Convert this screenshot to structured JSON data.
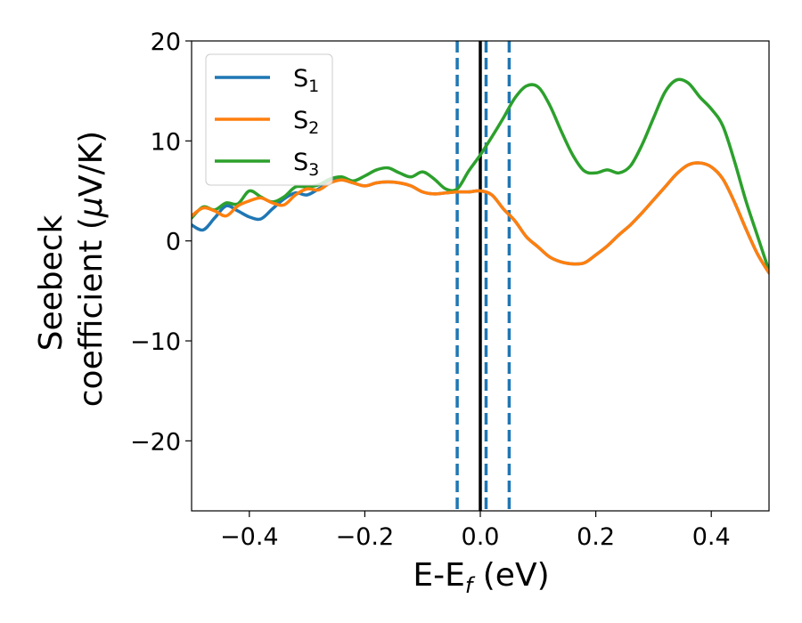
{
  "chart_data": {
    "type": "line",
    "xlabel": {
      "main": "E-E",
      "sub": "f",
      "unit": " (eV)"
    },
    "ylabel": {
      "line1": "Seebeck",
      "line2_pre": "coefficient  (",
      "line2_mu": "μ",
      "line2_post": "V/K)"
    },
    "xlim": [
      -0.5,
      0.5
    ],
    "ylim": [
      -27,
      20
    ],
    "xticks": [
      -0.4,
      -0.2,
      0.0,
      0.2,
      0.4
    ],
    "xtick_labels": [
      "−0.4",
      "−0.2",
      "0.0",
      "0.2",
      "0.4"
    ],
    "yticks": [
      -20,
      -10,
      0,
      10,
      20
    ],
    "ytick_labels": [
      "−20",
      "−10",
      "0",
      "10",
      "20"
    ],
    "grid": false,
    "legend_position": "top-left",
    "vlines": [
      {
        "x": 0.0,
        "style": "solid",
        "color": "#000000"
      },
      {
        "x": -0.04,
        "style": "dashed",
        "color": "#1f77b4"
      },
      {
        "x": 0.01,
        "style": "dashed",
        "color": "#1f77b4"
      },
      {
        "x": 0.05,
        "style": "dashed",
        "color": "#1f77b4"
      }
    ],
    "series": [
      {
        "name": "S",
        "sub": "1",
        "color": "#1f77b4",
        "x": [
          -0.5,
          -0.48,
          -0.46,
          -0.44,
          -0.42,
          -0.4,
          -0.38,
          -0.36,
          -0.34,
          -0.32,
          -0.3,
          -0.28,
          -0.26,
          -0.24,
          -0.22,
          -0.2,
          -0.18,
          -0.16,
          -0.14,
          -0.12,
          -0.1,
          -0.08,
          -0.06,
          -0.04,
          -0.02,
          0.0,
          0.02,
          0.04,
          0.06,
          0.08,
          0.1,
          0.12,
          0.14,
          0.16,
          0.18,
          0.2,
          0.22,
          0.24,
          0.26,
          0.28,
          0.3,
          0.32,
          0.34,
          0.36,
          0.38,
          0.4,
          0.42,
          0.44,
          0.46,
          0.48,
          0.5
        ],
        "y": [
          1.6,
          1.1,
          2.3,
          3.5,
          3.0,
          2.4,
          2.2,
          3.2,
          4.2,
          4.8,
          4.6,
          5.2,
          5.9,
          6.1,
          5.8,
          5.5,
          5.8,
          5.9,
          5.8,
          5.5,
          4.9,
          4.7,
          4.8,
          4.9,
          4.9,
          5.0,
          4.6,
          3.2,
          2.0,
          0.4,
          -0.6,
          -1.6,
          -2.1,
          -2.3,
          -2.2,
          -1.4,
          -0.5,
          0.6,
          1.6,
          2.8,
          4.1,
          5.4,
          6.7,
          7.6,
          7.8,
          7.4,
          6.2,
          3.9,
          1.2,
          -1.3,
          -3.2
        ]
      },
      {
        "name": "S",
        "sub": "2",
        "color": "#ff7f0e",
        "x": [
          -0.5,
          -0.48,
          -0.46,
          -0.44,
          -0.42,
          -0.4,
          -0.38,
          -0.36,
          -0.34,
          -0.32,
          -0.3,
          -0.28,
          -0.26,
          -0.24,
          -0.22,
          -0.2,
          -0.18,
          -0.16,
          -0.14,
          -0.12,
          -0.1,
          -0.08,
          -0.06,
          -0.04,
          -0.02,
          0.0,
          0.02,
          0.04,
          0.06,
          0.08,
          0.1,
          0.12,
          0.14,
          0.16,
          0.18,
          0.2,
          0.22,
          0.24,
          0.26,
          0.28,
          0.3,
          0.32,
          0.34,
          0.36,
          0.38,
          0.4,
          0.42,
          0.44,
          0.46,
          0.48,
          0.5
        ],
        "y": [
          2.5,
          3.3,
          3.0,
          2.5,
          3.5,
          4.0,
          4.3,
          3.8,
          3.6,
          4.6,
          5.2,
          5.1,
          5.8,
          6.1,
          5.8,
          5.5,
          5.8,
          5.9,
          5.8,
          5.5,
          4.9,
          4.7,
          4.8,
          4.9,
          4.9,
          5.0,
          4.6,
          3.2,
          2.0,
          0.4,
          -0.6,
          -1.6,
          -2.1,
          -2.3,
          -2.2,
          -1.4,
          -0.5,
          0.6,
          1.6,
          2.8,
          4.1,
          5.4,
          6.7,
          7.6,
          7.8,
          7.4,
          6.2,
          3.9,
          1.2,
          -1.3,
          -3.2
        ]
      },
      {
        "name": "S",
        "sub": "3",
        "color": "#2ca02c",
        "x": [
          -0.5,
          -0.48,
          -0.46,
          -0.44,
          -0.42,
          -0.4,
          -0.38,
          -0.36,
          -0.34,
          -0.32,
          -0.3,
          -0.28,
          -0.26,
          -0.24,
          -0.22,
          -0.2,
          -0.18,
          -0.16,
          -0.14,
          -0.12,
          -0.1,
          -0.08,
          -0.06,
          -0.04,
          -0.02,
          0.0,
          0.02,
          0.04,
          0.06,
          0.08,
          0.1,
          0.12,
          0.14,
          0.16,
          0.18,
          0.2,
          0.22,
          0.24,
          0.26,
          0.28,
          0.3,
          0.32,
          0.34,
          0.36,
          0.38,
          0.4,
          0.42,
          0.44,
          0.46,
          0.48,
          0.5
        ],
        "y": [
          2.3,
          3.4,
          3.1,
          3.8,
          3.7,
          5.0,
          4.4,
          3.9,
          4.4,
          5.4,
          5.4,
          5.6,
          6.2,
          6.4,
          6.0,
          6.5,
          7.1,
          7.3,
          6.8,
          6.4,
          6.9,
          6.2,
          5.2,
          5.2,
          7.0,
          8.6,
          10.4,
          12.3,
          14.3,
          15.5,
          15.4,
          13.6,
          11.0,
          8.6,
          7.0,
          6.8,
          7.1,
          6.8,
          7.5,
          9.6,
          12.3,
          14.9,
          16.1,
          15.8,
          14.4,
          13.2,
          11.5,
          8.0,
          4.0,
          0.5,
          -3.0
        ]
      }
    ]
  }
}
